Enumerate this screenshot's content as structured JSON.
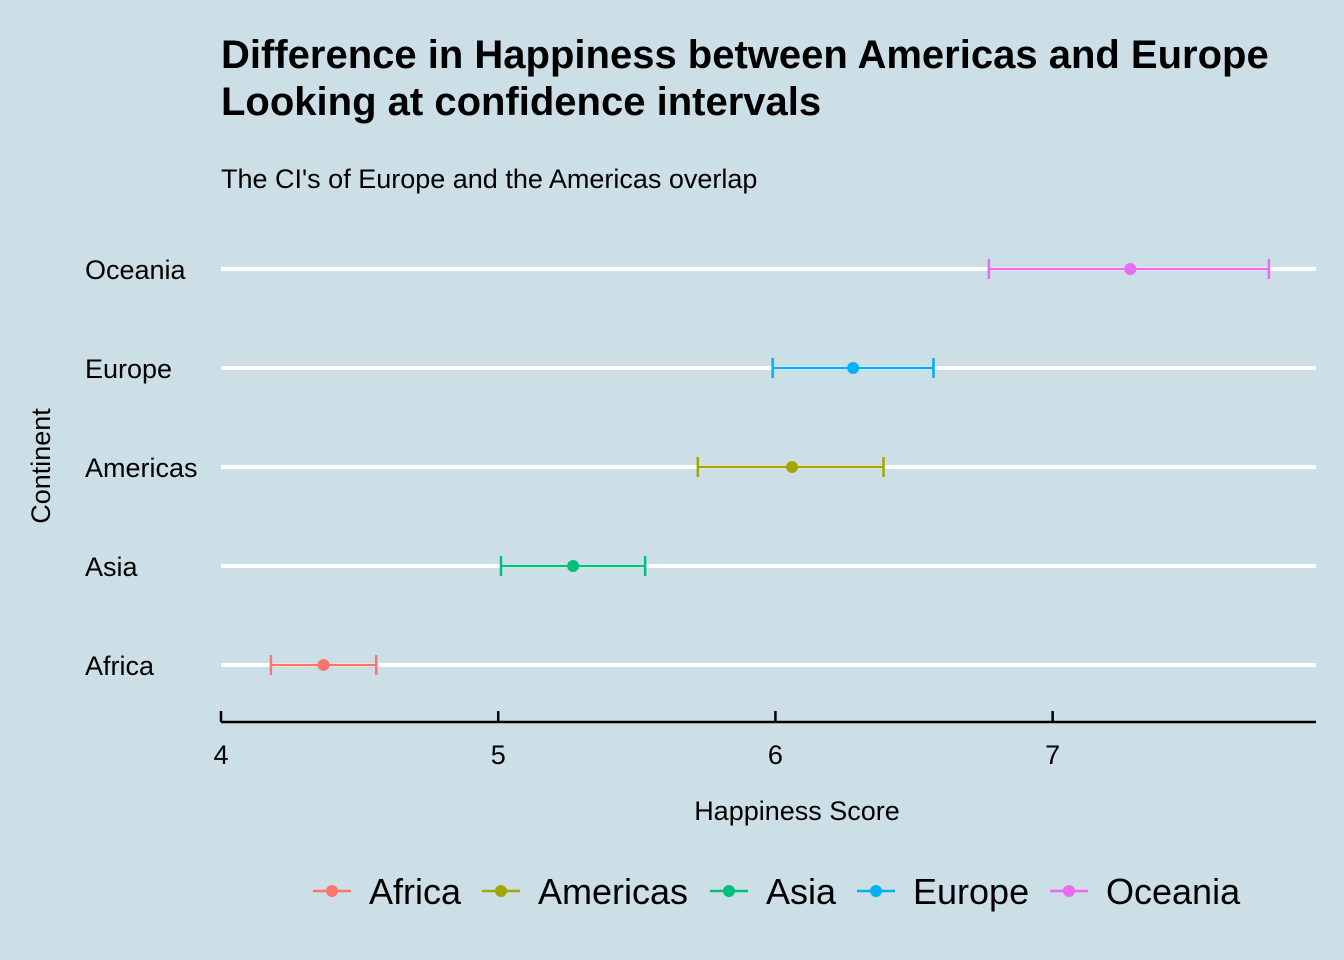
{
  "chart_data": {
    "type": "errorbar",
    "title_lines": [
      "Difference in Happiness between Americas and Europe",
      "Looking at confidence intervals"
    ],
    "subtitle": "The CI's of Europe and the Americas overlap",
    "xlabel": "Happiness Score",
    "ylabel": "Continent",
    "xlim": [
      4,
      7.95
    ],
    "x_ticks": [
      4,
      5,
      6,
      7
    ],
    "x_tick_labels": [
      "4",
      "5",
      "6",
      "7"
    ],
    "grid": "horizontal major lines only",
    "legend_position": "bottom",
    "categories": [
      "Africa",
      "Asia",
      "Americas",
      "Europe",
      "Oceania"
    ],
    "series": [
      {
        "name": "Africa",
        "color": "#f8766d",
        "mean": 4.37,
        "lower": 4.18,
        "upper": 4.56
      },
      {
        "name": "Asia",
        "color": "#00ba38",
        "mean": 5.27,
        "lower": 5.01,
        "upper": 5.53
      },
      {
        "name": "Americas",
        "color": "#b79f00",
        "mean": 6.06,
        "lower": 5.72,
        "upper": 6.39
      },
      {
        "name": "Europe",
        "color": "#00bfc4",
        "mean": 6.28,
        "lower": 5.99,
        "upper": 6.57
      },
      {
        "name": "Oceania",
        "color": "#f564e3",
        "mean": 7.28,
        "lower": 6.77,
        "upper": 7.78
      }
    ],
    "legend_order": [
      "Africa",
      "Americas",
      "Asia",
      "Europe",
      "Oceania"
    ],
    "colors": {
      "background": "#cddfe6",
      "gridline": "#ffffff",
      "axis": "#000000",
      "Africa": "#f8766d",
      "Americas": "#a3a500",
      "Asia": "#00bf7d",
      "Europe": "#00b0f6",
      "Oceania": "#e76bf3"
    }
  }
}
